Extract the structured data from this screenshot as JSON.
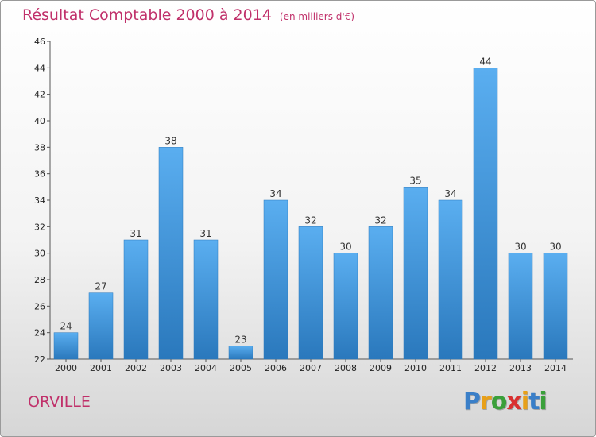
{
  "header": {
    "title": "Résultat Comptable 2000 à 2014",
    "unit": "(en milliers d'€)"
  },
  "footer": {
    "commune": "ORVILLE",
    "logo_letters": [
      "P",
      "r",
      "o",
      "x",
      "i",
      "t",
      "i"
    ],
    "logo_colors": [
      "#3a7fc8",
      "#e8a019",
      "#3aa03a",
      "#d93030",
      "#e8a019",
      "#3a7fc8",
      "#3aa03a"
    ]
  },
  "colors": {
    "title": "#c0306a",
    "bar_light": "#5aaef0",
    "bar_dark": "#2a78bc",
    "axis": "#555555"
  },
  "chart_data": {
    "type": "bar",
    "title": "Résultat Comptable 2000 à 2014",
    "subtitle": "(en milliers d'€)",
    "xlabel": "",
    "ylabel": "",
    "categories": [
      "2000",
      "2001",
      "2002",
      "2003",
      "2004",
      "2005",
      "2006",
      "2007",
      "2008",
      "2009",
      "2010",
      "2011",
      "2012",
      "2013",
      "2014"
    ],
    "values": [
      24,
      27,
      31,
      38,
      31,
      23,
      34,
      32,
      30,
      32,
      35,
      34,
      44,
      30,
      30
    ],
    "ylim": [
      22,
      46
    ],
    "yticks": [
      22,
      24,
      26,
      28,
      30,
      32,
      34,
      36,
      38,
      40,
      42,
      44,
      46
    ],
    "grid": false,
    "legend": "none"
  }
}
